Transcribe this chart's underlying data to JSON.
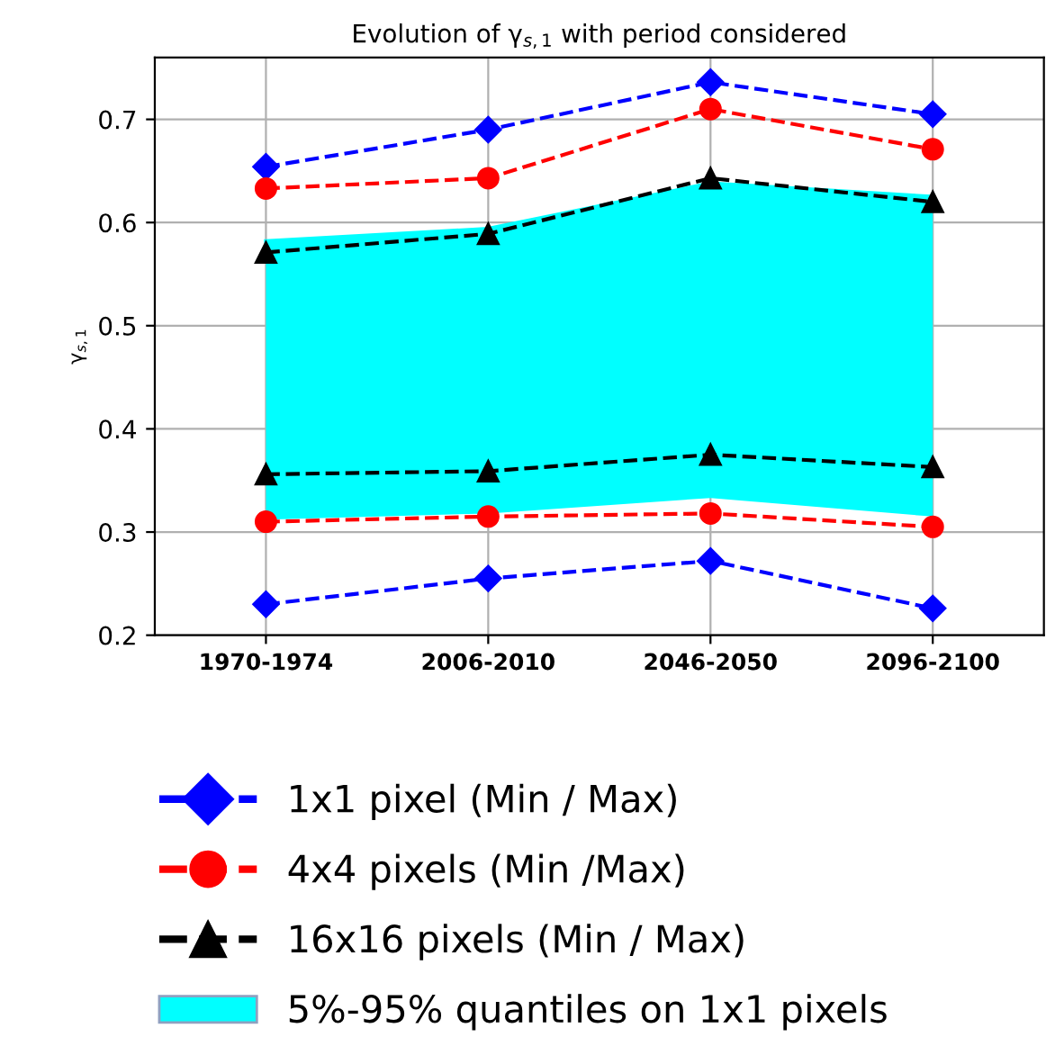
{
  "chart_data": {
    "type": "line",
    "title": "Evolution of γ$_{s,1}$ with period considered",
    "ylabel": "γ$_{s,1}$",
    "categories": [
      "1970-1974",
      "2006-2010",
      "2046-2050",
      "2096-2100"
    ],
    "ylim": [
      0.2,
      0.76
    ],
    "yticks": [
      0.2,
      0.3,
      0.4,
      0.5,
      0.6,
      0.7
    ],
    "grid": true,
    "legend": "bottom",
    "line_style": "dashed",
    "series": [
      {
        "type": "line",
        "name": "5%-95% quantiles on 1x1 pixels",
        "color": "#00ffff",
        "marker": "none",
        "line_style": "solid",
        "values": [
          0.582,
          0.594,
          0.638,
          0.625
        ],
        "lower": [
          0.312,
          0.318,
          0.333,
          0.315
        ],
        "upper": [
          0.582,
          0.594,
          0.638,
          0.625
        ]
      },
      {
        "name": "1x1 pixel (Min / Max)",
        "color": "#0000ff",
        "marker": "diamond",
        "values": [
          0.654,
          0.69,
          0.736,
          0.705
        ]
      },
      {
        "color": "#0000ff",
        "marker": "diamond",
        "values": [
          0.23,
          0.255,
          0.272,
          0.226
        ]
      },
      {
        "name": "4x4 pixels (Min /Max)",
        "color": "#ff0000",
        "marker": "circle",
        "values": [
          0.633,
          0.643,
          0.71,
          0.671
        ]
      },
      {
        "color": "#ff0000",
        "marker": "circle",
        "values": [
          0.31,
          0.315,
          0.318,
          0.305
        ]
      },
      {
        "name": "16x16 pixels (Min / Max)",
        "color": "#000000",
        "marker": "triangle",
        "values": [
          0.571,
          0.589,
          0.643,
          0.62
        ]
      },
      {
        "color": "#000000",
        "marker": "triangle",
        "values": [
          0.356,
          0.359,
          0.375,
          0.363
        ]
      }
    ]
  }
}
